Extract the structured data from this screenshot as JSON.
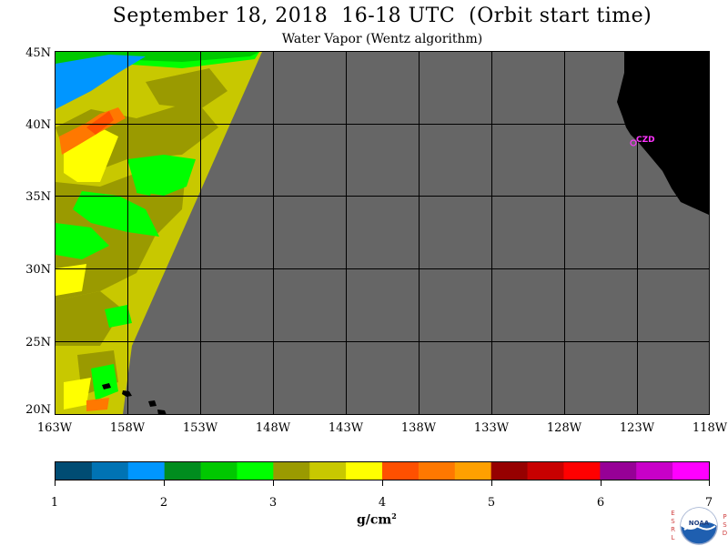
{
  "header": {
    "title": "September 18, 2018  16-18 UTC  (Orbit start time)",
    "subtitle": "Water Vapor (Wentz algorithm)"
  },
  "map": {
    "lat_ticks": [
      "45N",
      "40N",
      "35N",
      "30N",
      "25N",
      "20N"
    ],
    "lon_ticks": [
      "163W",
      "158W",
      "153W",
      "148W",
      "143W",
      "138W",
      "133W",
      "128W",
      "123W",
      "118W"
    ],
    "no_data_color": "#666666",
    "land_color": "#000000",
    "station_label": "CZD",
    "station_color": "#ff33ff",
    "grid": true
  },
  "colorbar": {
    "colors": [
      "#004c73",
      "#0073b4",
      "#0096ff",
      "#008c1e",
      "#00c800",
      "#00ff00",
      "#9a9a00",
      "#c8c800",
      "#ffff00",
      "#ff5000",
      "#ff7800",
      "#ffa000",
      "#960000",
      "#c80000",
      "#ff0000",
      "#960096",
      "#c800c8",
      "#ff00ff"
    ],
    "tick_labels": [
      "1",
      "2",
      "3",
      "4",
      "5",
      "6",
      "7"
    ],
    "units_base": "g/cm",
    "units_exp": "2"
  },
  "logo": {
    "left_letters": "ESRL",
    "right_letters": "PSD",
    "badge_text": "NOAA"
  }
}
